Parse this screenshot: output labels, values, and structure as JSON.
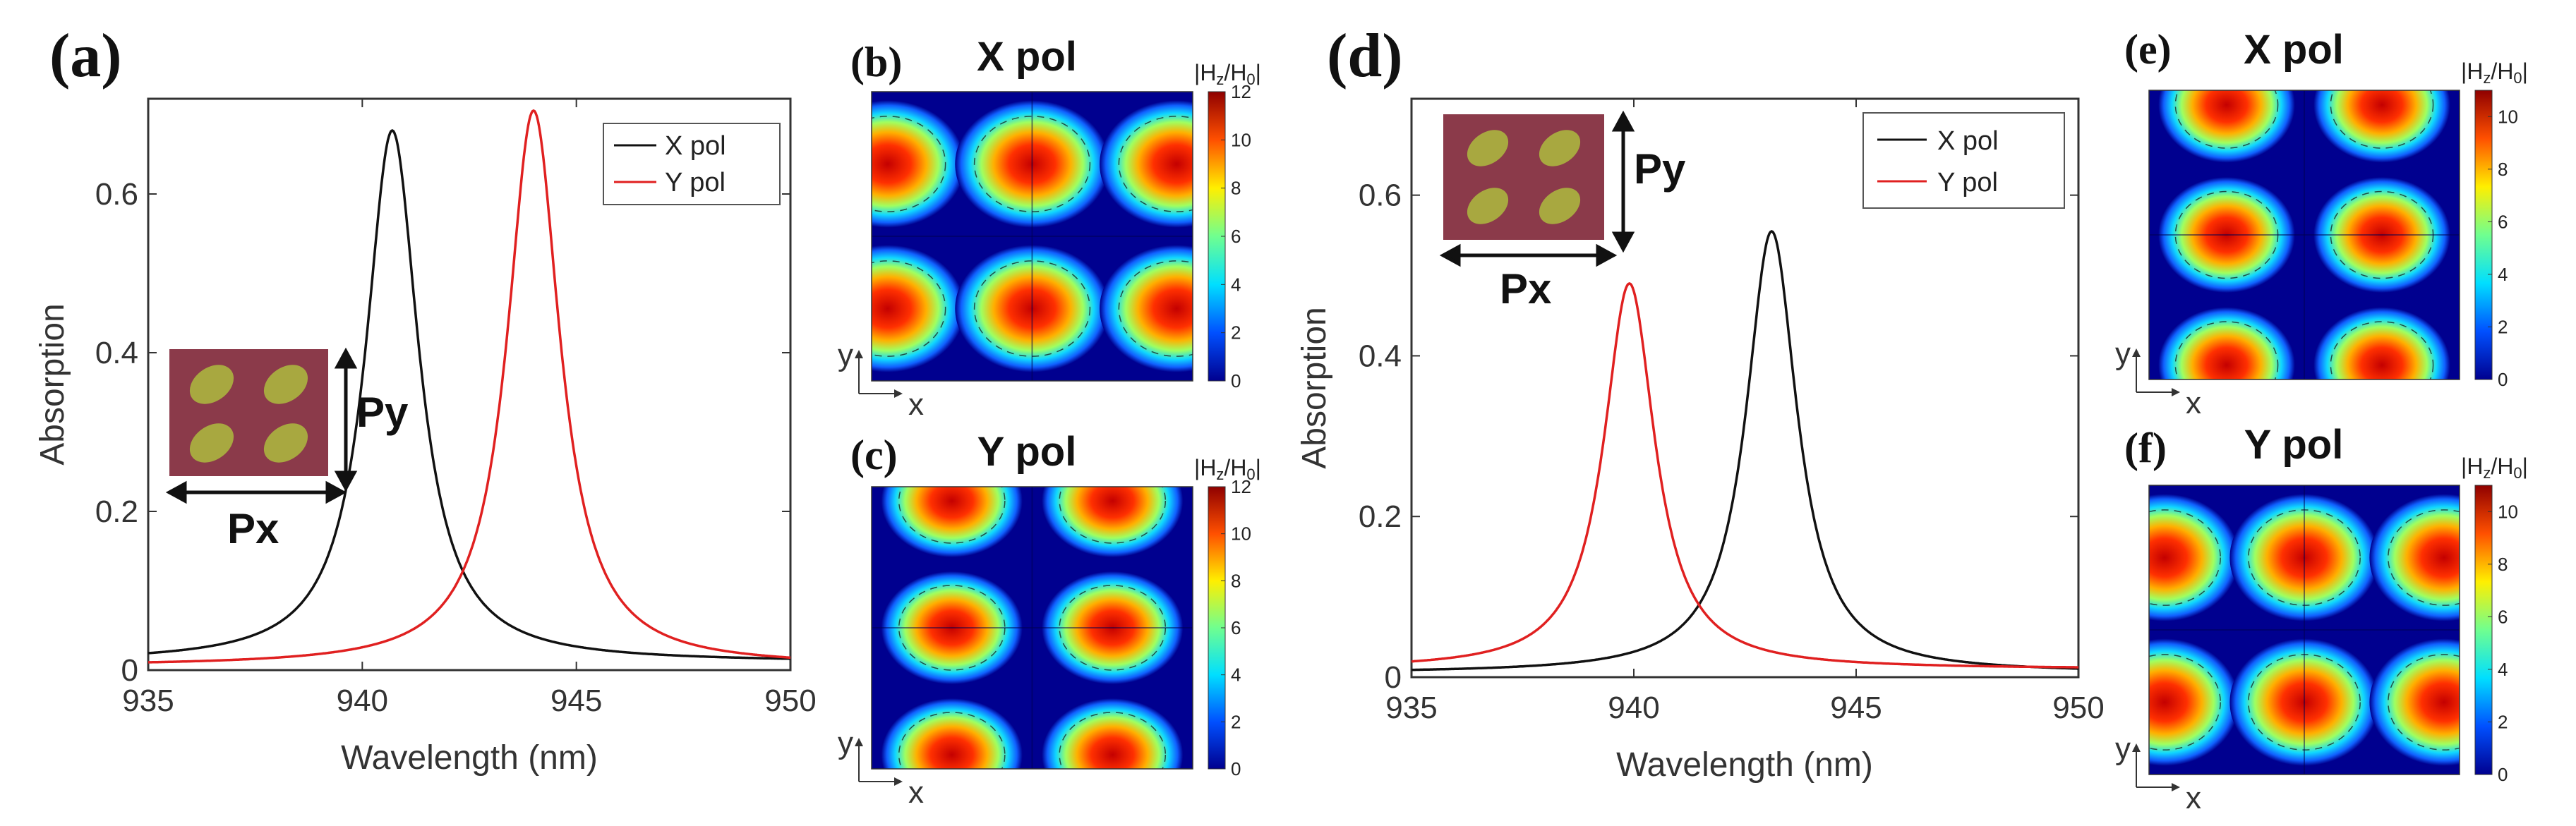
{
  "figure": {
    "panel_labels": [
      "(a)",
      "(d)"
    ],
    "subpanel_labels": [
      "(b)",
      "(c)",
      "(e)",
      "(f)"
    ],
    "inset": {
      "px_label": "Px",
      "py_label": "Py"
    },
    "axis_dirs": {
      "x": "x",
      "y": "y"
    },
    "colormap": {
      "colors": [
        "#00008f",
        "#0050ff",
        "#00dfff",
        "#70ff8f",
        "#ffef00",
        "#ff5000",
        "#8f0000"
      ],
      "label_main": "|H",
      "label_sub1": "z",
      "label_mid": "/H",
      "label_sub2": "0",
      "label_end": "|"
    },
    "colors": {
      "x_pol": "#111111",
      "y_pol": "#e02020",
      "inset_bg": "#8b3a4a",
      "inset_ellipse": "#a8a840"
    }
  },
  "chart_data": [
    {
      "id": "a",
      "type": "line",
      "xlabel": "Wavelength (nm)",
      "ylabel": "Absorption",
      "xlim": [
        935,
        950
      ],
      "ylim": [
        0,
        0.72
      ],
      "xticks": [
        935,
        940,
        945,
        950
      ],
      "yticks": [
        0,
        0.2,
        0.4,
        0.6
      ],
      "ytick_labels": [
        "0",
        "0.2",
        "0.4",
        "0.6"
      ],
      "legend": [
        "X pol",
        "Y pol"
      ],
      "series": [
        {
          "name": "X pol",
          "color": "#111111",
          "peak": 940.7,
          "amp": 0.67,
          "hw": 0.75,
          "base": 0.01
        },
        {
          "name": "Y pol",
          "color": "#e02020",
          "peak": 944.0,
          "amp": 0.7,
          "hw": 0.75,
          "base": 0.005
        }
      ]
    },
    {
      "id": "d",
      "type": "line",
      "xlabel": "Wavelength (nm)",
      "ylabel": "Absorption",
      "xlim": [
        935,
        950
      ],
      "ylim": [
        0,
        0.72
      ],
      "xticks": [
        935,
        940,
        945,
        950
      ],
      "yticks": [
        0,
        0.2,
        0.4,
        0.6
      ],
      "ytick_labels": [
        "0",
        "0.2",
        "0.4",
        "0.6"
      ],
      "legend": [
        "X pol",
        "Y pol"
      ],
      "series": [
        {
          "name": "X pol",
          "color": "#111111",
          "peak": 943.1,
          "amp": 0.55,
          "hw": 0.7,
          "base": 0.005
        },
        {
          "name": "Y pol",
          "color": "#e02020",
          "peak": 939.9,
          "amp": 0.48,
          "hw": 0.7,
          "base": 0.01
        }
      ]
    },
    {
      "id": "b",
      "type": "heatmap",
      "title": "X pol",
      "colorbar_ticks": [
        "0",
        "2",
        "4",
        "6",
        "8",
        "10",
        "12"
      ],
      "pattern": "horizontal"
    },
    {
      "id": "c",
      "type": "heatmap",
      "title": "Y pol",
      "colorbar_ticks": [
        "0",
        "2",
        "4",
        "6",
        "8",
        "10",
        "12"
      ],
      "pattern": "vertical"
    },
    {
      "id": "e",
      "type": "heatmap",
      "title": "X pol",
      "colorbar_ticks": [
        "0",
        "2",
        "4",
        "6",
        "8",
        "10"
      ],
      "pattern": "vertical"
    },
    {
      "id": "f",
      "type": "heatmap",
      "title": "Y pol",
      "colorbar_ticks": [
        "0",
        "2",
        "4",
        "6",
        "8",
        "10"
      ],
      "pattern": "horizontal"
    }
  ]
}
